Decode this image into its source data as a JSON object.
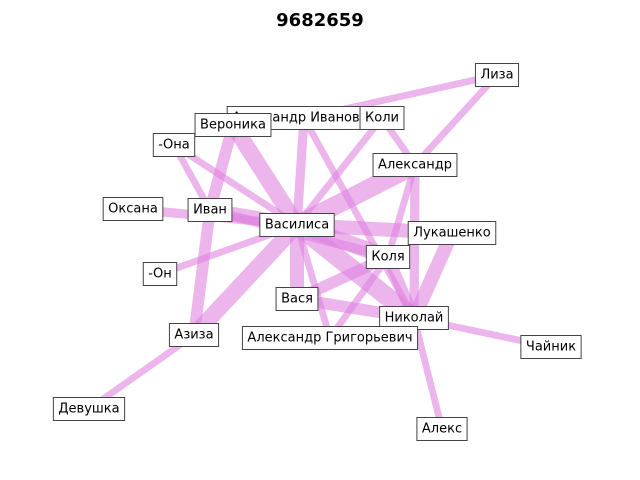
{
  "title": "9682659",
  "colors": {
    "edge": "#e083e0",
    "edge_opacity": 0.6,
    "box_fill": "#ffffff",
    "box_stroke": "#444444"
  },
  "nodes": [
    {
      "id": "lisa",
      "label": "Лиза"
    },
    {
      "id": "alex_ivan",
      "label": "Александр Иванович"
    },
    {
      "id": "koli",
      "label": "Коли"
    },
    {
      "id": "veronika",
      "label": "Вероника"
    },
    {
      "id": "ona",
      "label": "-Она"
    },
    {
      "id": "alexandr",
      "label": "Александр"
    },
    {
      "id": "oksana",
      "label": "Оксана"
    },
    {
      "id": "ivan",
      "label": "Иван"
    },
    {
      "id": "vasilisa",
      "label": "Василиса"
    },
    {
      "id": "lukashenko",
      "label": "Лукашенко"
    },
    {
      "id": "kolya",
      "label": "Коля"
    },
    {
      "id": "on",
      "label": "-Он"
    },
    {
      "id": "vasya",
      "label": "Вася"
    },
    {
      "id": "nikolay",
      "label": "Николай"
    },
    {
      "id": "aziza",
      "label": "Азиза"
    },
    {
      "id": "alex_grig",
      "label": "Александр Григорьевич"
    },
    {
      "id": "chaynik",
      "label": "Чайник"
    },
    {
      "id": "devushka",
      "label": "Девушка"
    },
    {
      "id": "aleks",
      "label": "Алекс"
    }
  ],
  "edges": [
    {
      "source": "vasilisa",
      "target": "alexandr",
      "weight": 7
    },
    {
      "source": "vasilisa",
      "target": "veronika",
      "weight": 6
    },
    {
      "source": "vasilisa",
      "target": "alex_ivan",
      "weight": 3
    },
    {
      "source": "vasilisa",
      "target": "koli",
      "weight": 2
    },
    {
      "source": "vasilisa",
      "target": "ivan",
      "weight": 5
    },
    {
      "source": "vasilisa",
      "target": "oksana",
      "weight": 3
    },
    {
      "source": "vasilisa",
      "target": "ona",
      "weight": 2
    },
    {
      "source": "vasilisa",
      "target": "lukashenko",
      "weight": 5
    },
    {
      "source": "vasilisa",
      "target": "kolya",
      "weight": 6
    },
    {
      "source": "vasilisa",
      "target": "nikolay",
      "weight": 7
    },
    {
      "source": "vasilisa",
      "target": "vasya",
      "weight": 5
    },
    {
      "source": "vasilisa",
      "target": "on",
      "weight": 2
    },
    {
      "source": "vasilisa",
      "target": "alex_grig",
      "weight": 2
    },
    {
      "source": "ivan",
      "target": "aziza",
      "weight": 4
    },
    {
      "source": "ivan",
      "target": "veronika",
      "weight": 4
    },
    {
      "source": "ivan",
      "target": "ona",
      "weight": 2
    },
    {
      "source": "ivan",
      "target": "kolya",
      "weight": 3
    },
    {
      "source": "kolya",
      "target": "vasya",
      "weight": 4
    },
    {
      "source": "kolya",
      "target": "nikolay",
      "weight": 4
    },
    {
      "source": "kolya",
      "target": "alexandr",
      "weight": 2
    },
    {
      "source": "kolya",
      "target": "alex_grig",
      "weight": 2
    },
    {
      "source": "vasya",
      "target": "nikolay",
      "weight": 4
    },
    {
      "source": "nikolay",
      "target": "lukashenko",
      "weight": 5
    },
    {
      "source": "nikolay",
      "target": "alexandr",
      "weight": 3
    },
    {
      "source": "nikolay",
      "target": "chaynik",
      "weight": 2
    },
    {
      "source": "nikolay",
      "target": "aleks",
      "weight": 2
    },
    {
      "source": "nikolay",
      "target": "alex_ivan",
      "weight": 2
    },
    {
      "source": "alexandr",
      "target": "lisa",
      "weight": 2
    },
    {
      "source": "alexandr",
      "target": "koli",
      "weight": 2
    },
    {
      "source": "alex_ivan",
      "target": "lisa",
      "weight": 2
    },
    {
      "source": "aziza",
      "target": "devushka",
      "weight": 2
    },
    {
      "source": "aziza",
      "target": "vasilisa",
      "weight": 6
    }
  ]
}
